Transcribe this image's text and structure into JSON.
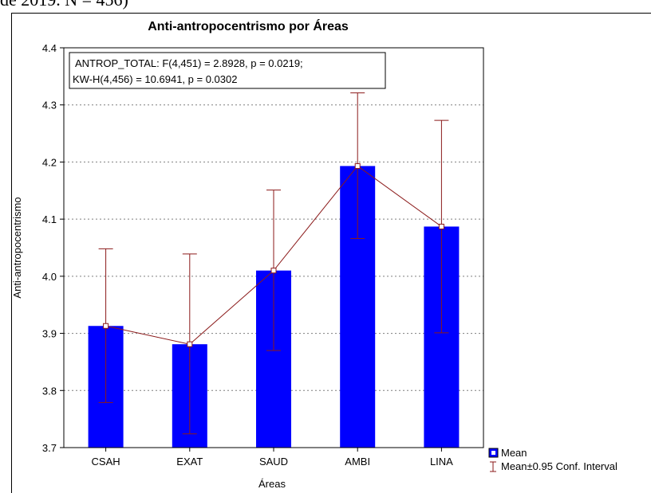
{
  "caption": "de 2019. N = 456)",
  "chart_data": {
    "type": "bar",
    "title": "Anti-antropocentrismo por Áreas",
    "xlabel": "Áreas",
    "ylabel": "Anti-antropocentrismo",
    "categories": [
      "CSAH",
      "EXAT",
      "SAUD",
      "AMBI",
      "LINA"
    ],
    "values": [
      3.913,
      3.881,
      4.01,
      4.193,
      4.087
    ],
    "ci_lower": [
      3.779,
      3.724,
      3.87,
      4.066,
      3.901
    ],
    "ci_upper": [
      4.048,
      4.039,
      4.151,
      4.321,
      4.273
    ],
    "ylim": [
      3.7,
      4.4
    ],
    "yticks": [
      "3.7",
      "3.8",
      "3.9",
      "4.0",
      "4.1",
      "4.2",
      "4.3",
      "4.4"
    ],
    "grid": "horizontal dashed",
    "annotation": {
      "line1": "ANTROP_TOTAL:  F(4,451) = 2.8928, p = 0.0219;",
      "line2": "KW-H(4,456) = 10.6941, p = 0.0302"
    },
    "legend": {
      "position": "right-bottom",
      "mean_label": "Mean",
      "ci_label": "Mean±0.95 Conf. Interval"
    },
    "colors": {
      "bar": "#0000ff",
      "line": "#8b1a1a",
      "marker_fill": "#ffffff"
    }
  }
}
